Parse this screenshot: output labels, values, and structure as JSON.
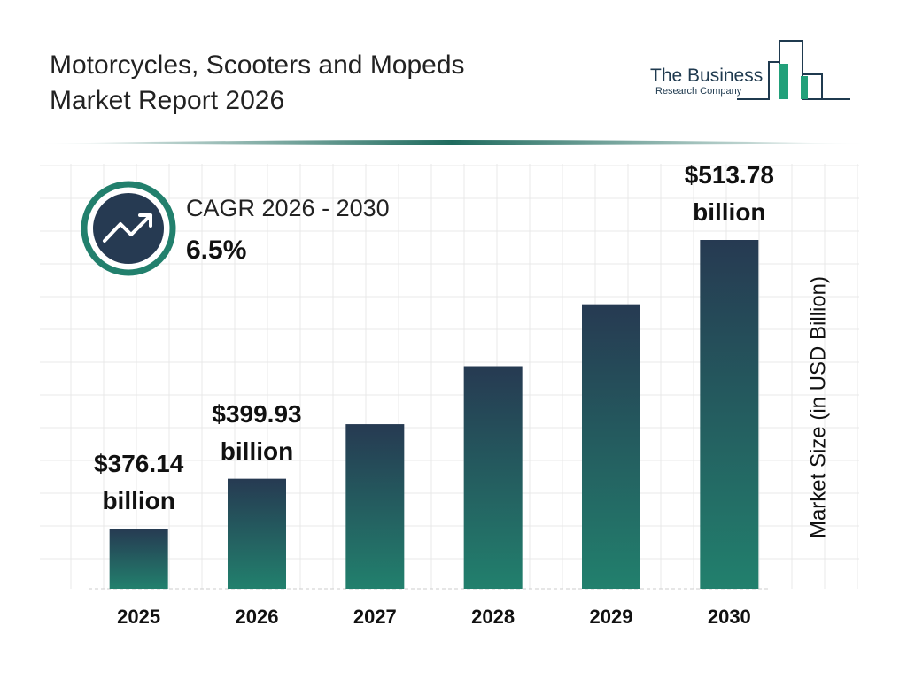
{
  "logo": {
    "line1": "The Business",
    "line2": "Research Company"
  },
  "chart_data": {
    "type": "bar",
    "title": "Motorcycles, Scooters and Mopeds Market Report 2026",
    "annotations": [
      "CAGR 2026 - 2030",
      "6.5%"
    ],
    "y_label": "Market Size (in USD Billion)",
    "categories": [
      "2025",
      "2026",
      "2027",
      "2028",
      "2029",
      "2030"
    ],
    "values": [
      376.14,
      399.93,
      425.93,
      453.61,
      483.1,
      513.78
    ],
    "value_labels": [
      "$376.14 billion",
      "$399.93 billion",
      null,
      null,
      null,
      "$513.78 billion"
    ],
    "colors": [
      "#263a52",
      "#22806d"
    ]
  }
}
